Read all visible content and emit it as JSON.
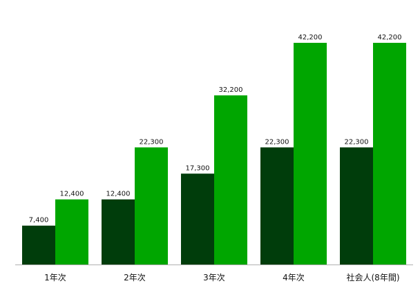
{
  "chart_data": {
    "type": "bar",
    "categories": [
      "1年次",
      "2年次",
      "3年次",
      "4年次",
      "社会人(8年間)"
    ],
    "series": [
      {
        "values": [
          7400,
          12400,
          17300,
          22300,
          22300
        ],
        "labels": [
          "7,400",
          "12,400",
          "17,300",
          "22,300",
          "22,300"
        ],
        "color": "#003d0b"
      },
      {
        "values": [
          12400,
          22300,
          32200,
          42200,
          42200
        ],
        "labels": [
          "12,400",
          "22,300",
          "32,200",
          "42,200",
          "42,200"
        ],
        "color": "#00a600"
      }
    ],
    "ylim": [
      0,
      42200
    ],
    "grid": false,
    "legend": "none",
    "axis_color": "#b0b0b0"
  }
}
